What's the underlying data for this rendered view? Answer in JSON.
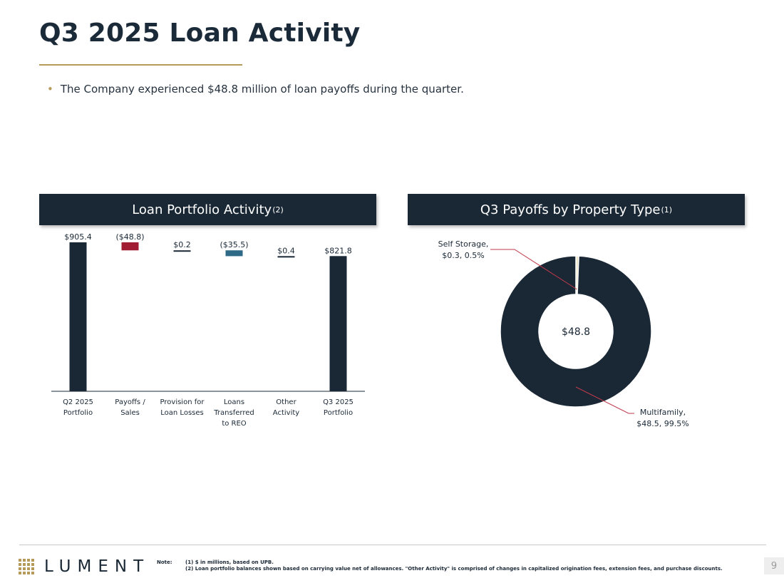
{
  "slide": {
    "title": "Q3 2025 Loan Activity",
    "bullet": "The Company experienced $48.8 million of loan payoffs during the quarter.",
    "page_number": "9"
  },
  "colors": {
    "navy": "#1a2836",
    "gold": "#b59a5a",
    "red": "#a11d33",
    "teal": "#2e6a88",
    "cream": "#efe4c9"
  },
  "chart_data": [
    {
      "type": "bar",
      "subtype": "waterfall",
      "title": "Loan Portfolio Activity",
      "title_note": "(2)",
      "categories": [
        "Q2 2025\nPortfolio",
        "Payoffs /\nSales",
        "Provision for\nLoan Losses",
        "Loans\nTransferred\nto REO",
        "Other\nActivity",
        "Q3 2025\nPortfolio"
      ],
      "values": [
        905.4,
        -48.8,
        0.2,
        -35.5,
        0.4,
        821.8
      ],
      "data_labels": [
        "$905.4",
        "($48.8)",
        "$0.2",
        "($35.5)",
        "$0.4",
        "$821.8"
      ],
      "bar_kinds": [
        "total",
        "delta",
        "delta",
        "delta",
        "delta",
        "total"
      ],
      "bar_colors": [
        "#1a2836",
        "#a11d33",
        "#1a2836",
        "#2e6a88",
        "#1a2836",
        "#1a2836"
      ],
      "ylim": [
        0,
        905.4
      ],
      "grid": false,
      "legend": "none"
    },
    {
      "type": "pie",
      "subtype": "donut",
      "title": "Q3 Payoffs by Property Type",
      "title_note": "(1)",
      "center_label": "$48.8",
      "slices": [
        {
          "name": "Self Storage",
          "value": 0.3,
          "percent": 0.5,
          "label": "Self Storage,\n$0.3, 0.5%",
          "color": "#efe4c9"
        },
        {
          "name": "Multifamily",
          "value": 48.5,
          "percent": 99.5,
          "label": "Multifamily,\n$48.5, 99.5%",
          "color": "#1a2836"
        }
      ],
      "legend": "none"
    }
  ],
  "footer": {
    "logo_text": "LUMENT",
    "note_label": "Note:",
    "notes": [
      "(1) $ in millions, based on UPB.",
      "(2) Loan portfolio balances shown based on carrying value net of allowances. \"Other Activity\" is comprised of changes in capitalized origination fees, extension fees, and purchase discounts."
    ]
  }
}
